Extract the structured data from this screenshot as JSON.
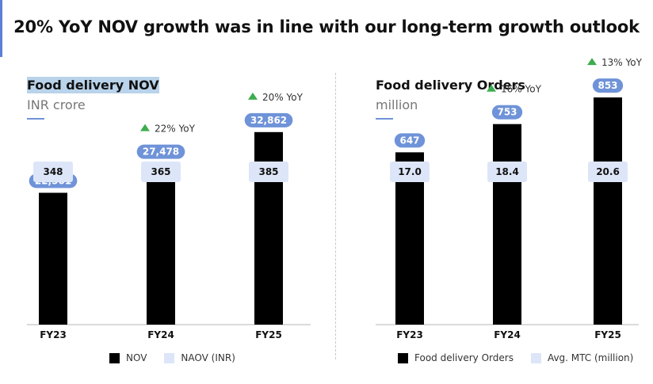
{
  "page": {
    "title": "20% YoY NOV growth was in line with our long-term growth outlook"
  },
  "colors": {
    "bar": "#000000",
    "pill_value": "#6f93d8",
    "pill_top": "#dde6f8",
    "growth_arrow": "#3dad4e",
    "accent": "#5b7fd6"
  },
  "chart_data": [
    {
      "type": "bar",
      "title": "Food delivery NOV",
      "subtitle": "INR crore",
      "categories": [
        "FY23",
        "FY24",
        "FY25"
      ],
      "series": [
        {
          "name": "NOV",
          "values": [
            22501,
            27478,
            32862
          ],
          "labels": [
            "22,501",
            "27,478",
            "32,862"
          ]
        },
        {
          "name": "NAOV (INR)",
          "values": [
            348,
            365,
            385
          ],
          "labels": [
            "348",
            "365",
            "385"
          ]
        }
      ],
      "growth_labels": [
        "",
        "22% YoY",
        "20% YoY"
      ],
      "legend": [
        "NOV",
        "NAOV (INR)"
      ],
      "ylim": [
        0,
        50000
      ]
    },
    {
      "type": "bar",
      "title": "Food delivery Orders",
      "subtitle": "million",
      "categories": [
        "FY23",
        "FY24",
        "FY25"
      ],
      "series": [
        {
          "name": "Food delivery Orders",
          "values": [
            647,
            753,
            853
          ],
          "labels": [
            "647",
            "753",
            "853"
          ]
        },
        {
          "name": "Avg. MTC (million)",
          "values": [
            17.0,
            18.4,
            20.6
          ],
          "labels": [
            "17.0",
            "18.4",
            "20.6"
          ]
        }
      ],
      "growth_labels": [
        "",
        "16% YoY",
        "13% YoY"
      ],
      "legend": [
        "Food delivery Orders",
        "Avg. MTC (million)"
      ],
      "ylim": [
        0,
        1100
      ]
    }
  ]
}
